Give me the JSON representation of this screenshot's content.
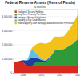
{
  "chart_data": {
    "type": "area",
    "title": "Federal Reserve Assets (Uses of Funds)",
    "subtitle": "$ Millions",
    "stacked": true,
    "grid": true,
    "legend": "upper left",
    "x": [
      2007,
      2007.5,
      2008,
      2008.5,
      2009,
      2009.5,
      2010,
      2010.5,
      2011,
      2011.5,
      2012,
      2012.5,
      2013,
      2013.5,
      2014
    ],
    "xlim": [
      2007,
      2014
    ],
    "xticks": [
      2008,
      2010,
      2012,
      2014
    ],
    "ylim": [
      0,
      4500000
    ],
    "yticks": [
      0,
      {
        "value": 1000000,
        "label": "1,000,000"
      },
      {
        "value": 2000000,
        "label": "2,000,000"
      },
      {
        "value": 3000000,
        "label": "3,000,000"
      },
      {
        "value": 4000000,
        "label": "4,000,000"
      }
    ],
    "series": [
      {
        "name": "Traditional Security Holdings",
        "color": "#d62a1e",
        "values": [
          780000,
          790000,
          750000,
          480000,
          480000,
          500000,
          480000,
          480000,
          480000,
          480000,
          480000,
          480000,
          480000,
          480000,
          480000
        ]
      },
      {
        "name": "Long-Term Treasury Purchases",
        "color": "#2e9a3a",
        "values": [
          0,
          0,
          0,
          0,
          0,
          250000,
          300000,
          300000,
          600000,
          1100000,
          1150000,
          1200000,
          1400000,
          1600000,
          1900000
        ]
      },
      {
        "name": "Lending to Financial Institutions",
        "color": "#1f3f9a",
        "values": [
          0,
          20000,
          150000,
          400000,
          600000,
          350000,
          150000,
          80000,
          50000,
          30000,
          20000,
          20000,
          20000,
          20000,
          20000
        ]
      },
      {
        "name": "Liquidity to Key Credit Markets",
        "color": "#5bc0e8",
        "values": [
          0,
          0,
          0,
          50000,
          650000,
          250000,
          100000,
          50000,
          20000,
          20000,
          10000,
          0,
          0,
          0,
          0
        ]
      },
      {
        "name": "Federal Agency Debt Mortgage-Backed Securities Purchases",
        "color": "#f2c21b",
        "values": [
          0,
          0,
          0,
          0,
          50000,
          700000,
          1100000,
          1150000,
          1050000,
          950000,
          900000,
          900000,
          1100000,
          1400000,
          1700000
        ]
      }
    ]
  }
}
